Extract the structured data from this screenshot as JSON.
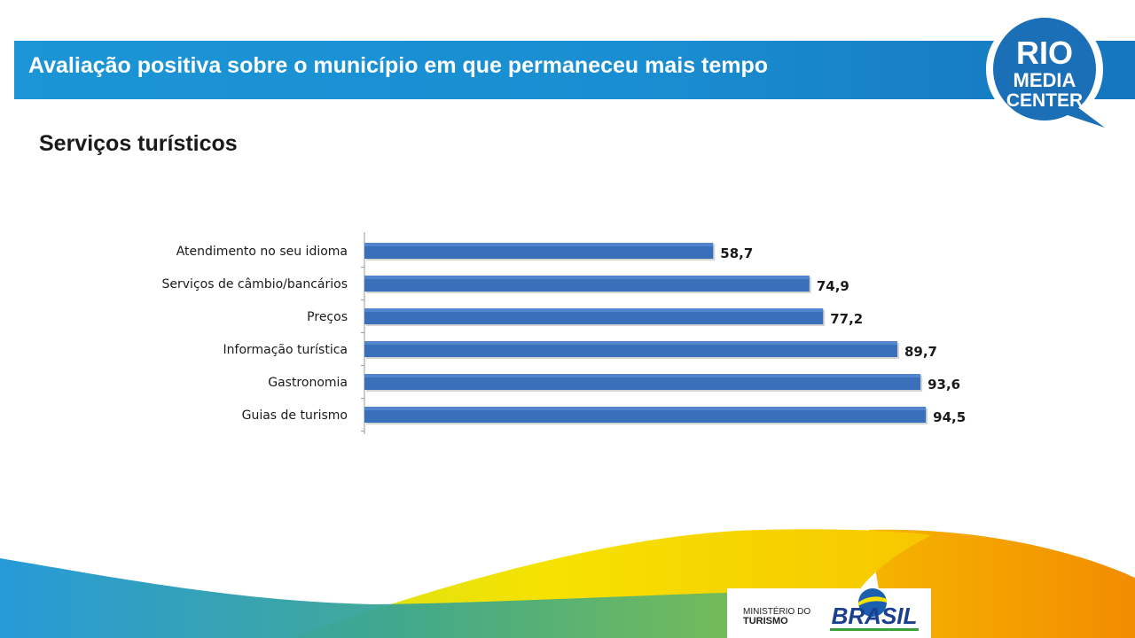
{
  "header": {
    "title": "Avaliação positiva sobre o município em que permaneceu mais tempo"
  },
  "logo": {
    "line1": "RIO",
    "line2": "MEDIA",
    "line3": "CENTER",
    "icon": "speech-bubble-logo"
  },
  "subtitle": "Serviços turísticos",
  "footer": {
    "ministerio_line1": "MINISTÉRIO DO",
    "ministerio_line2": "TURISMO",
    "brasil_logo": "BRASIL"
  },
  "colors": {
    "header_blue": "#1b95d6",
    "bar_blue": "#3a6fba",
    "yellow": "#f6e200",
    "orange": "#f28c00",
    "green": "#8cc63f"
  },
  "chart_data": {
    "type": "bar",
    "orientation": "horizontal",
    "categories": [
      "Atendimento no seu idioma",
      "Serviços de câmbio/bancários",
      "Preços",
      "Informação turística",
      "Gastronomia",
      "Guias de turismo"
    ],
    "values": [
      58.7,
      74.9,
      77.2,
      89.7,
      93.6,
      94.5
    ],
    "value_labels": [
      "58,7",
      "74,9",
      "77,2",
      "89,7",
      "93,6",
      "94,5"
    ],
    "title": "",
    "xlabel": "",
    "ylabel": "",
    "xlim": [
      0,
      100
    ],
    "grid": false,
    "legend": "none"
  }
}
